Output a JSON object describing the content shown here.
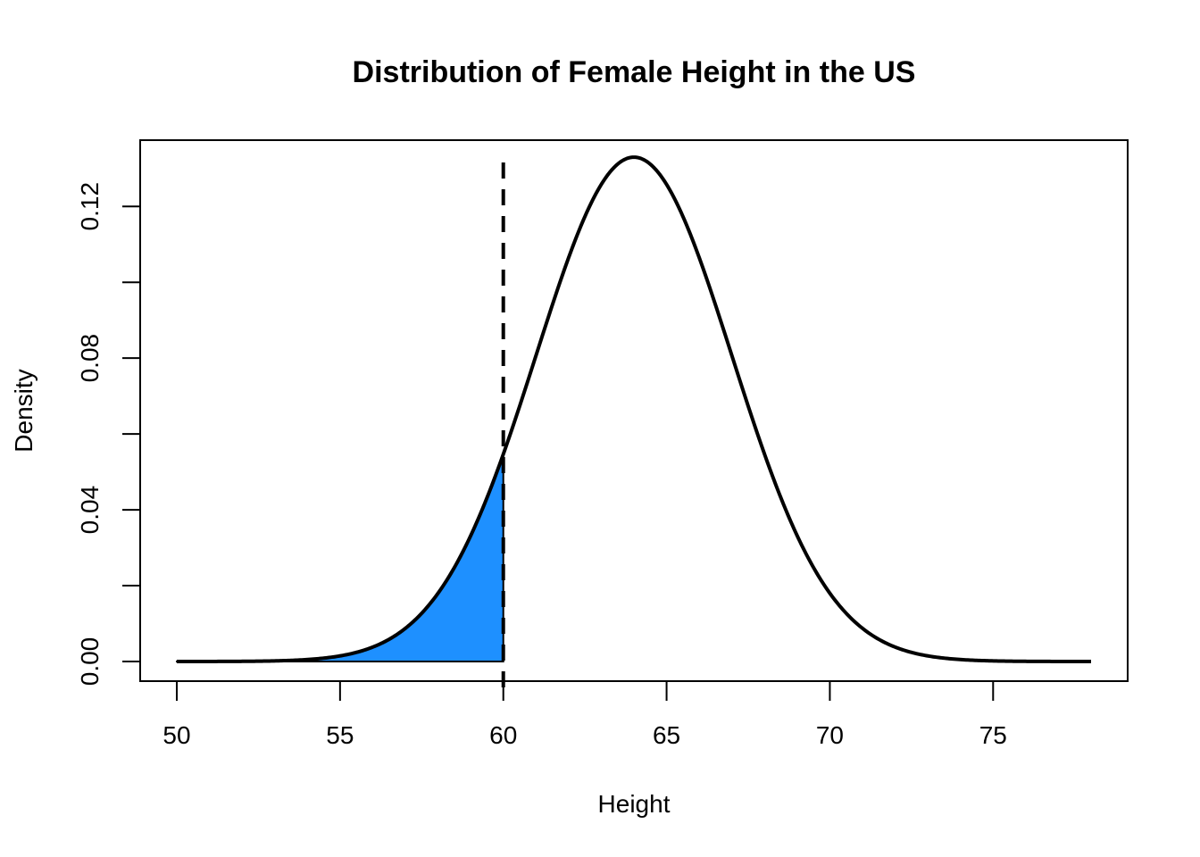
{
  "chart_data": {
    "type": "area",
    "title": "Distribution of Female Height in the US",
    "xlabel": "Height",
    "ylabel": "Density",
    "xlim": [
      50,
      78
    ],
    "ylim": [
      0,
      0.133
    ],
    "x_ticks": [
      {
        "value": 50,
        "label": "50"
      },
      {
        "value": 55,
        "label": "55"
      },
      {
        "value": 60,
        "label": "60"
      },
      {
        "value": 65,
        "label": "65"
      },
      {
        "value": 70,
        "label": "70"
      },
      {
        "value": 75,
        "label": "75"
      }
    ],
    "y_ticks": [
      {
        "value": 0.0,
        "label": "0.00"
      },
      {
        "value": 0.02,
        "label": ""
      },
      {
        "value": 0.04,
        "label": "0.04"
      },
      {
        "value": 0.06,
        "label": ""
      },
      {
        "value": 0.08,
        "label": "0.08"
      },
      {
        "value": 0.1,
        "label": ""
      },
      {
        "value": 0.12,
        "label": "0.12"
      }
    ],
    "distribution": {
      "family": "normal",
      "mean": 64,
      "sd": 3
    },
    "shaded_region": {
      "from": 50,
      "to": 60,
      "color": "#1E90FF"
    },
    "reference_line": {
      "x": 60,
      "style": "dashed",
      "color": "#000000"
    },
    "curve_color": "#000000",
    "grid": false,
    "legend": "none"
  }
}
